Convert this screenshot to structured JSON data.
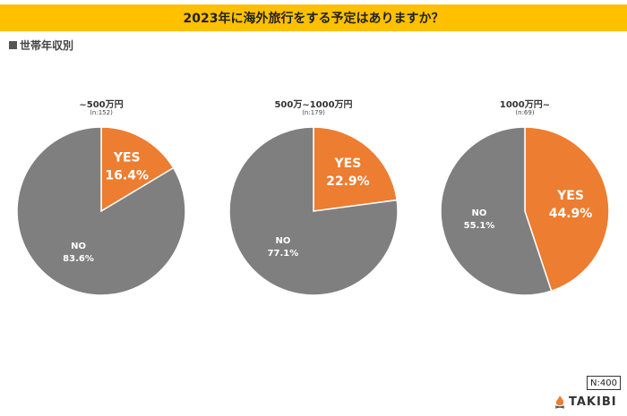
{
  "title": "2023年に海外旅行をする予定はありますか？",
  "subtitle": "世帯年収別",
  "colors": {
    "yes": "#ed7d31",
    "no": "#7f7f7f",
    "header": "#ffc000"
  },
  "chart_data": [
    {
      "type": "pie",
      "title": "~500万円",
      "count_label": "(n:152)",
      "labels": [
        "YES",
        "NO"
      ],
      "values": [
        16.4,
        83.6
      ],
      "value_labels": [
        "16.4%",
        "83.6%"
      ]
    },
    {
      "type": "pie",
      "title": "500万~1000万円",
      "count_label": "(n:179)",
      "labels": [
        "YES",
        "NO"
      ],
      "values": [
        22.9,
        77.1
      ],
      "value_labels": [
        "22.9%",
        "77.1%"
      ]
    },
    {
      "type": "pie",
      "title": "1000万円~",
      "count_label": "(n:69)",
      "labels": [
        "YES",
        "NO"
      ],
      "values": [
        44.9,
        55.1
      ],
      "value_labels": [
        "44.9%",
        "55.1%"
      ]
    }
  ],
  "footer": {
    "n_label": "N:400",
    "brand": "TAKIBI"
  }
}
